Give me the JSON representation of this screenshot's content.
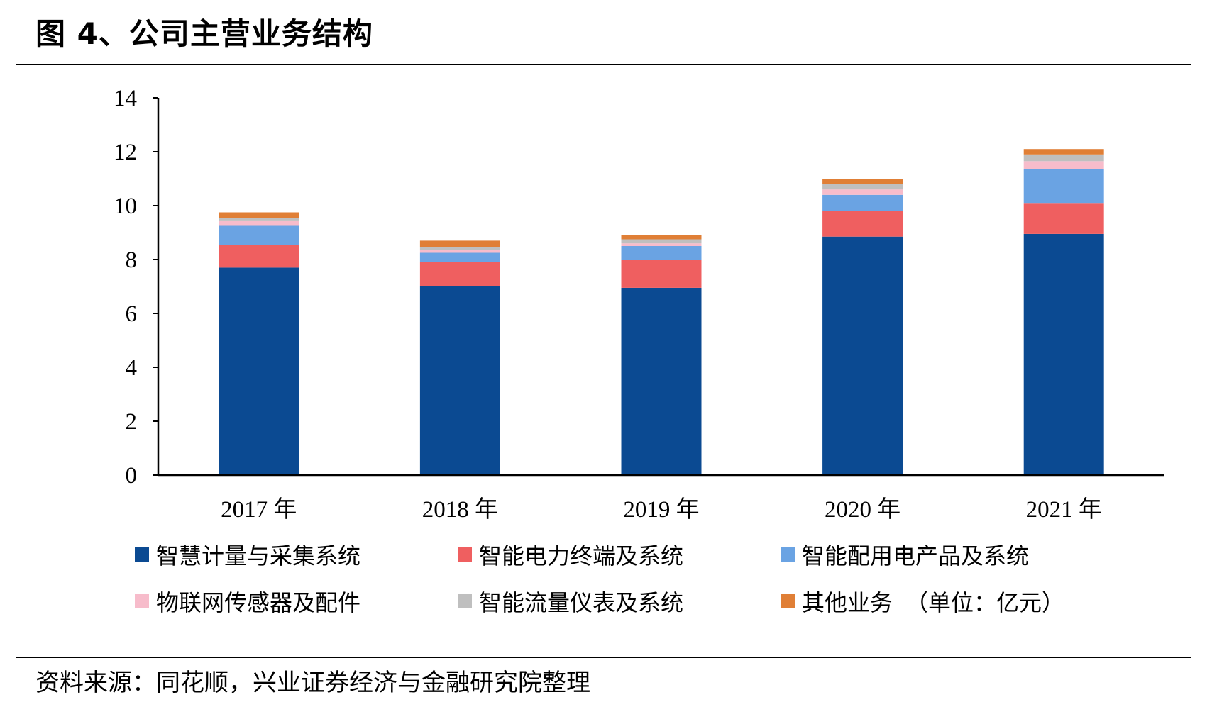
{
  "figure": {
    "title": "图 4、公司主营业务结构",
    "source": "资料来源：同花顺，兴业证券经济与金融研究院整理"
  },
  "chart_data": {
    "type": "bar",
    "stacked": true,
    "title": "",
    "xlabel": "",
    "ylabel": "",
    "ylim": [
      0,
      14
    ],
    "yticks": [
      0,
      2,
      4,
      6,
      8,
      10,
      12,
      14
    ],
    "grid": false,
    "legend_position": "bottom",
    "categories": [
      "2017 年",
      "2018 年",
      "2019 年",
      "2020 年",
      "2021 年"
    ],
    "series": [
      {
        "name": "智慧计量与采集系统",
        "color": "#0b4a92",
        "values": [
          7.7,
          7.0,
          6.95,
          8.85,
          8.95
        ]
      },
      {
        "name": "智能电力终端及系统",
        "color": "#ef5f60",
        "values": [
          0.85,
          0.9,
          1.05,
          0.95,
          1.15
        ]
      },
      {
        "name": "智能配用电产品及系统",
        "color": "#6aa3e3",
        "values": [
          0.7,
          0.35,
          0.5,
          0.6,
          1.25
        ]
      },
      {
        "name": "物联网传感器及配件",
        "color": "#f7bccb",
        "values": [
          0.2,
          0.1,
          0.1,
          0.2,
          0.3
        ]
      },
      {
        "name": "智能流量仪表及系统",
        "color": "#bfbfbf",
        "values": [
          0.1,
          0.1,
          0.15,
          0.2,
          0.25
        ]
      },
      {
        "name": "其他业务",
        "color": "#e07f36",
        "values": [
          0.2,
          0.25,
          0.15,
          0.2,
          0.2
        ]
      }
    ],
    "unit_note": "（单位：亿元）"
  }
}
